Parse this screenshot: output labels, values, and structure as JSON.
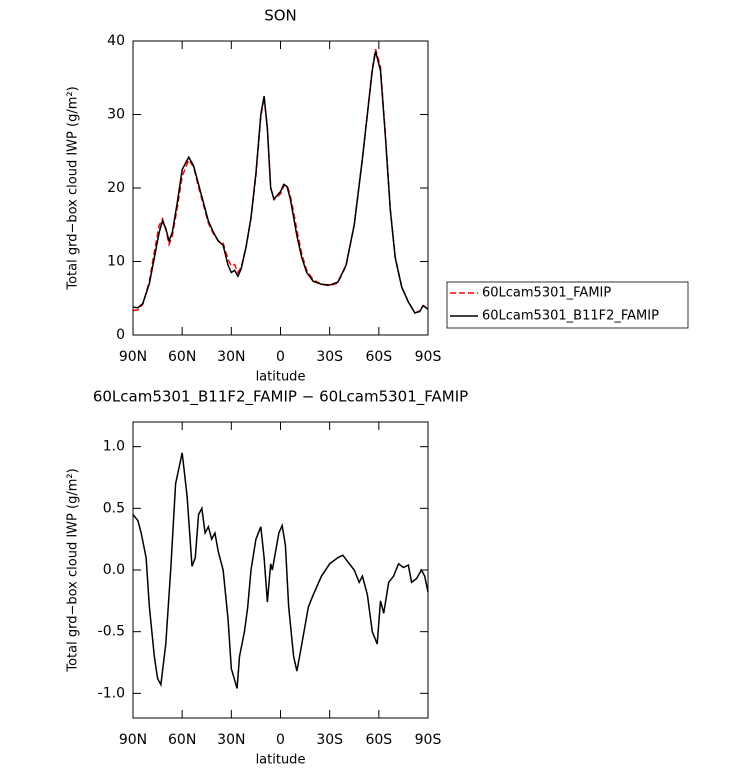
{
  "chart_data": [
    {
      "type": "line",
      "title": "SON",
      "xlabel": "latitude",
      "ylabel": "Total grd−box cloud IWP (g/m²)",
      "x": [
        90,
        87,
        84,
        80,
        77,
        74,
        72,
        70,
        68,
        66,
        63,
        60,
        56,
        53,
        50,
        47,
        44,
        41,
        38,
        35,
        32,
        30,
        28,
        26,
        24,
        21,
        18,
        15,
        12,
        10,
        8,
        6,
        4,
        2,
        0,
        -2,
        -4,
        -6,
        -8,
        -10,
        -13,
        -16,
        -20,
        -25,
        -30,
        -35,
        -40,
        -45,
        -50,
        -53,
        -56,
        -58,
        -61,
        -64,
        -67,
        -70,
        -74,
        -78,
        -82,
        -85,
        -87,
        -90
      ],
      "series": [
        {
          "name": "60Lcam5301_FAMIP",
          "color": "#ff0000",
          "dashed": true,
          "values": [
            3.35,
            3.4,
            4.2,
            7.3,
            11.3,
            14.9,
            15.8,
            14.4,
            12.3,
            13.5,
            17.3,
            21.6,
            23.8,
            22.9,
            20.1,
            17.7,
            15.2,
            13.8,
            12.8,
            12.5,
            10.3,
            9.4,
            9.6,
            8.5,
            9.2,
            12,
            15.8,
            21.7,
            29.7,
            32.4,
            28.2,
            20.1,
            18.4,
            18.8,
            19.2,
            20.3,
            20.4,
            18.9,
            16.7,
            14.3,
            11,
            8.8,
            7.5,
            6.9,
            6.7,
            7.1,
            9.4,
            15,
            24.1,
            30.1,
            36.2,
            38.9,
            36.5,
            27.3,
            17.1,
            10.6,
            6.5,
            4.5,
            3,
            3.3,
            4.0,
            3.6
          ]
        },
        {
          "name": "60Lcam5301_B11F2_FAMIP",
          "color": "#000000",
          "dashed": false,
          "values": [
            3.8,
            3.7,
            4.3,
            7,
            10.5,
            14,
            15.5,
            14.5,
            12.8,
            14,
            18,
            22.5,
            24.2,
            23,
            20.5,
            18,
            15.5,
            14,
            12.8,
            12.2,
            9.5,
            8.5,
            8.8,
            8,
            9,
            12,
            16,
            22,
            30,
            32.5,
            28,
            20,
            18.5,
            19,
            19.5,
            20.5,
            20.2,
            18.5,
            16,
            13.5,
            10.5,
            8.5,
            7.3,
            6.9,
            6.8,
            7.2,
            9.5,
            15,
            24,
            30,
            36,
            38.6,
            36,
            27,
            17,
            10.5,
            6.5,
            4.5,
            3,
            3.2,
            4.0,
            3.5
          ]
        }
      ],
      "xlim": [
        90,
        -90
      ],
      "xticks": [
        {
          "value": 90,
          "label": "90N"
        },
        {
          "value": 60,
          "label": "60N"
        },
        {
          "value": 30,
          "label": "30N"
        },
        0,
        {
          "value": -30,
          "label": "30S"
        },
        {
          "value": -60,
          "label": "60S"
        },
        {
          "value": -90,
          "label": "90S"
        }
      ],
      "ylim": [
        0,
        40
      ],
      "yticks": [
        0,
        10,
        20,
        30,
        40
      ],
      "legend": "right"
    },
    {
      "type": "line",
      "title": "60Lcam5301_B11F2_FAMIP − 60Lcam5301_FAMIP",
      "xlabel": "latitude",
      "ylabel": "Total grd−box cloud IWP (g/m²)",
      "x": [
        90,
        87,
        85,
        82,
        80,
        77,
        75,
        73,
        70,
        67,
        64,
        60,
        57,
        54,
        52,
        50,
        48,
        46,
        44,
        42,
        40,
        38,
        35,
        32,
        30,
        26.5,
        25,
        22,
        20,
        18,
        15,
        12,
        10,
        8,
        6,
        5,
        3,
        1,
        -1,
        -3,
        -5,
        -8,
        -10,
        -13,
        -17,
        -20,
        -25,
        -30,
        -35,
        -38,
        -42,
        -45,
        -48,
        -50,
        -53,
        -56,
        -59,
        -61,
        -63,
        -66,
        -69,
        -72,
        -75,
        -78,
        -80,
        -83,
        -86,
        -88,
        -90
      ],
      "series": [
        {
          "color": "#000000",
          "dashed": false,
          "values": [
            0.45,
            0.4,
            0.3,
            0.1,
            -0.3,
            -0.7,
            -0.88,
            -0.93,
            -0.6,
            0,
            0.7,
            0.95,
            0.6,
            0.03,
            0.1,
            0.45,
            0.5,
            0.3,
            0.35,
            0.25,
            0.3,
            0.15,
            0,
            -0.4,
            -0.8,
            -0.96,
            -0.7,
            -0.5,
            -0.3,
            0,
            0.25,
            0.35,
            0.1,
            -0.26,
            0.05,
            0,
            0.15,
            0.3,
            0.36,
            0.2,
            -0.3,
            -0.7,
            -0.82,
            -0.6,
            -0.3,
            -0.2,
            -0.05,
            0.05,
            0.1,
            0.12,
            0.05,
            0,
            -0.1,
            -0.05,
            -0.2,
            -0.5,
            -0.6,
            -0.25,
            -0.35,
            -0.1,
            -0.05,
            0.05,
            0.02,
            0.04,
            -0.1,
            -0.07,
            0,
            -0.05,
            -0.18
          ]
        }
      ],
      "xlim": [
        90,
        -90
      ],
      "xticks": [
        {
          "value": 90,
          "label": "90N"
        },
        {
          "value": 60,
          "label": "60N"
        },
        {
          "value": 30,
          "label": "30N"
        },
        0,
        {
          "value": -30,
          "label": "30S"
        },
        {
          "value": -60,
          "label": "60S"
        },
        {
          "value": -90,
          "label": "90S"
        }
      ],
      "ylim": [
        -1.2,
        1.2
      ],
      "yticks": [
        {
          "value": -1,
          "label": "-1.0"
        },
        -0.5,
        {
          "value": 0,
          "label": "0.0"
        },
        0.5,
        {
          "value": 1,
          "label": "1.0"
        }
      ]
    }
  ]
}
